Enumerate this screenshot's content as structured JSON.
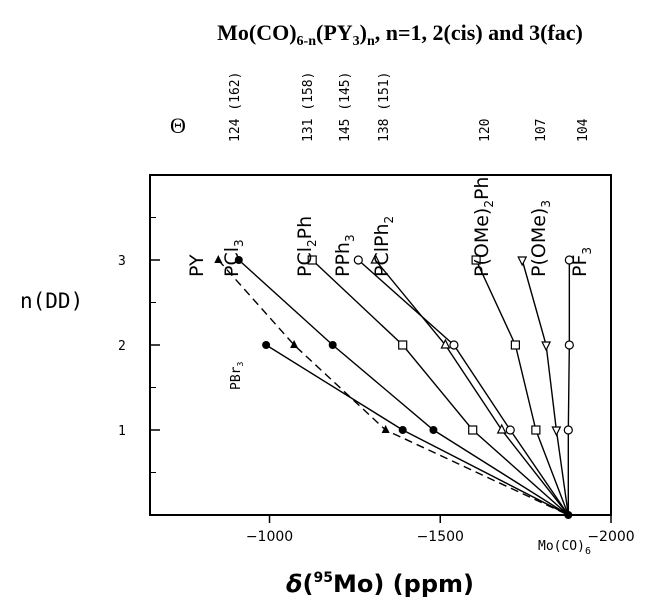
{
  "chart_data": {
    "type": "line",
    "title": "Mo(CO)6-n(PY3)n, n=1, 2(cis) and 3(fac)",
    "xlabel": "δ(95Mo) (ppm)",
    "ylabel": "n(DD)",
    "xlim": [
      -650,
      -2000
    ],
    "ylim": [
      0,
      4
    ],
    "x_ticks": [
      -1000,
      -1500,
      -2000
    ],
    "y_ticks": [
      1,
      2,
      3
    ],
    "origin_label": "Mo(CO)6",
    "cone_axis_label": "Θ",
    "series": [
      {
        "name": "PY",
        "cone": "",
        "marker": "triangle-filled",
        "dash": true,
        "points": [
          [
            -850,
            3
          ],
          [
            -1072,
            2
          ],
          [
            -1340,
            1
          ],
          [
            -1875,
            0
          ]
        ]
      },
      {
        "name": "PBr3",
        "cone": "",
        "marker": "circle-filled",
        "dash": false,
        "points": [
          [
            -990,
            2
          ],
          [
            -1390,
            1
          ],
          [
            -1875,
            0
          ]
        ]
      },
      {
        "name": "PCl3",
        "cone": "124 (162)",
        "marker": "circle-filled",
        "dash": false,
        "points": [
          [
            -910,
            3
          ],
          [
            -1185,
            2
          ],
          [
            -1480,
            1
          ],
          [
            -1875,
            0
          ]
        ]
      },
      {
        "name": "PCl2Ph",
        "cone": "131 (158)",
        "marker": "square",
        "dash": false,
        "points": [
          [
            -1125,
            3
          ],
          [
            -1390,
            2
          ],
          [
            -1595,
            1
          ],
          [
            -1875,
            0
          ]
        ]
      },
      {
        "name": "PPh3",
        "cone": "145 (145)",
        "marker": "circle",
        "dash": false,
        "points": [
          [
            -1260,
            3
          ],
          [
            -1540,
            2
          ],
          [
            -1705,
            1
          ],
          [
            -1875,
            0
          ]
        ]
      },
      {
        "name": "PClPh2",
        "cone": "138 (151)",
        "marker": "triangle",
        "dash": false,
        "points": [
          [
            -1310,
            3
          ],
          [
            -1515,
            2
          ],
          [
            -1680,
            1
          ],
          [
            -1875,
            0
          ]
        ]
      },
      {
        "name": "P(OMe)2Ph",
        "cone": "120",
        "marker": "square",
        "dash": false,
        "points": [
          [
            -1605,
            3
          ],
          [
            -1720,
            2
          ],
          [
            -1780,
            1
          ],
          [
            -1875,
            0
          ]
        ]
      },
      {
        "name": "P(OMe)3",
        "cone": "107",
        "marker": "triangle-down",
        "dash": false,
        "points": [
          [
            -1740,
            3
          ],
          [
            -1810,
            2
          ],
          [
            -1840,
            1
          ],
          [
            -1875,
            0
          ]
        ]
      },
      {
        "name": "PF3",
        "cone": "104",
        "marker": "circle",
        "dash": false,
        "points": [
          [
            -1878,
            3
          ],
          [
            -1878,
            2
          ],
          [
            -1875,
            1
          ],
          [
            -1875,
            0
          ]
        ]
      }
    ]
  }
}
